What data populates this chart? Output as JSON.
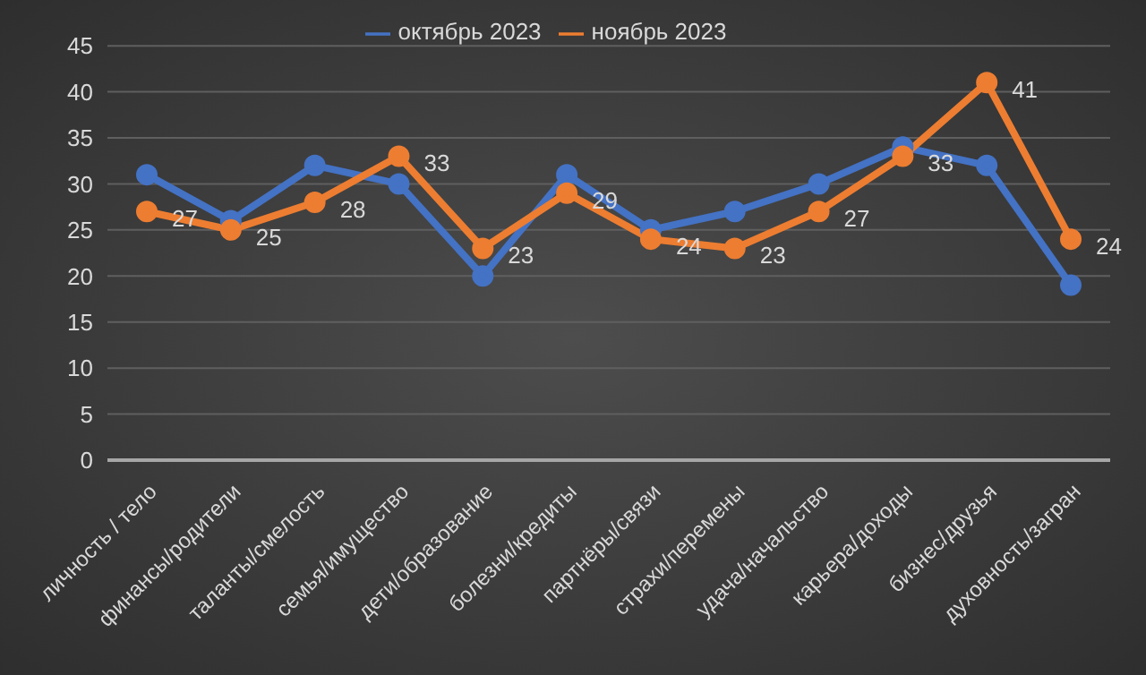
{
  "chart_data": {
    "type": "line",
    "categories": [
      "личность / тело",
      "финансы/родители",
      "таланты/смелость",
      "семья/имущество",
      "дети/образование",
      "болезни/кредиты",
      "партнёры/связи",
      "страхи/перемены",
      "удача/начальство",
      "карьера/доходы",
      "бизнес/друзья",
      "духовность/загран"
    ],
    "series": [
      {
        "name": "октябрь 2023",
        "color": "#4472c4",
        "values": [
          31,
          26,
          32,
          30,
          20,
          31,
          25,
          27,
          30,
          34,
          32,
          19
        ]
      },
      {
        "name": "ноябрь 2023",
        "color": "#ed7d31",
        "values": [
          27,
          25,
          28,
          33,
          23,
          29,
          24,
          23,
          27,
          33,
          41,
          24
        ],
        "value_labels": [
          "27",
          "25",
          "28",
          "33",
          "23",
          "29",
          "24",
          "23",
          "27",
          "33",
          "41",
          "24"
        ]
      }
    ],
    "ylim": [
      0,
      45
    ],
    "yticks": [
      0,
      5,
      10,
      15,
      20,
      25,
      30,
      35,
      40,
      45
    ],
    "grid": "y",
    "legend": "top",
    "marker": "circle",
    "line_style": "solid"
  }
}
